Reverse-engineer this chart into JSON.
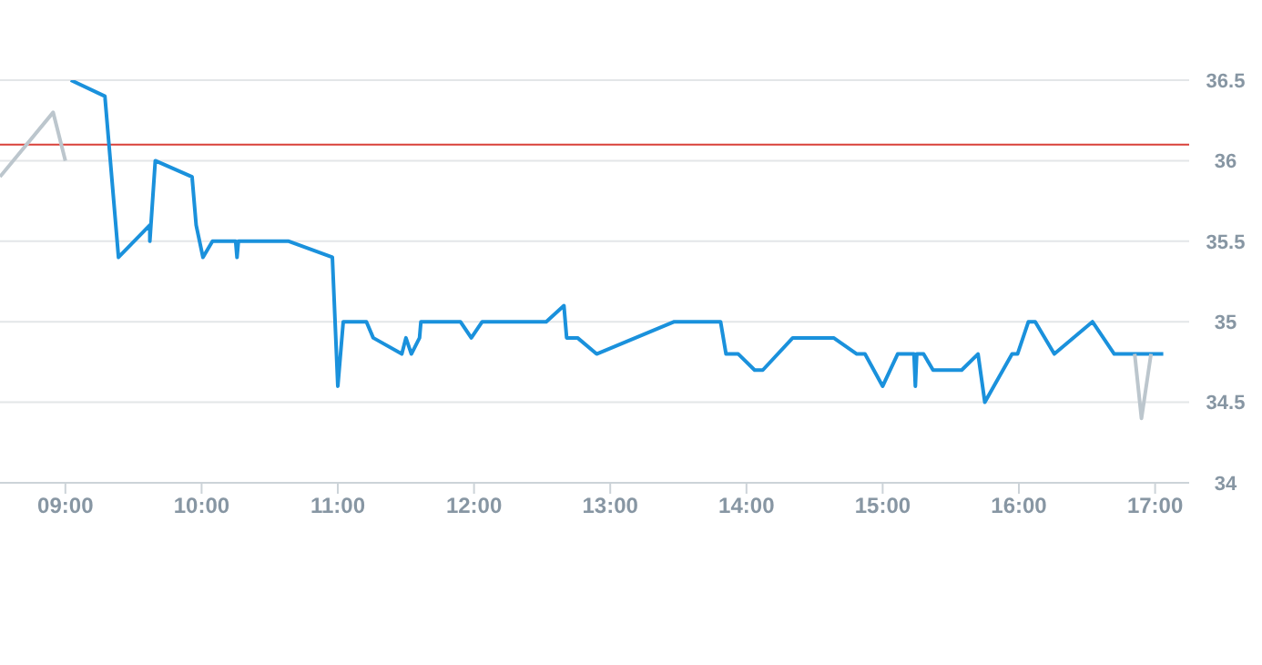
{
  "chart_data": {
    "type": "line",
    "xlim": [
      8.52,
      17.25
    ],
    "xticks": [
      {
        "value": 9,
        "label": "09:00"
      },
      {
        "value": 10,
        "label": "10:00"
      },
      {
        "value": 11,
        "label": "11:00"
      },
      {
        "value": 12,
        "label": "12:00"
      },
      {
        "value": 13,
        "label": "13:00"
      },
      {
        "value": 14,
        "label": "14:00"
      },
      {
        "value": 15,
        "label": "15:00"
      },
      {
        "value": 16,
        "label": "16:00"
      },
      {
        "value": 17,
        "label": "17:00"
      }
    ],
    "ylim": [
      34,
      36.5
    ],
    "yticks": [
      34,
      34.5,
      35,
      35.5,
      36,
      36.5
    ],
    "grid": "y",
    "marker": "none",
    "line_style": "solid",
    "ref_lines": [
      {
        "axis": "y",
        "value": 36.1,
        "color": "#d9413a"
      }
    ],
    "series": [
      {
        "color": "#bcc6cd",
        "x": [
          8.52,
          8.91,
          9.0
        ],
        "values": [
          35.9,
          36.3,
          36.0
        ]
      },
      {
        "color": "#1a91dc",
        "x": [
          9.04,
          9.29,
          9.39,
          9.62,
          9.62,
          9.66,
          9.93,
          9.96,
          10.01,
          10.08,
          10.25,
          10.26,
          10.27,
          10.64,
          10.96,
          11.0,
          11.04,
          11.21,
          11.26,
          11.47,
          11.5,
          11.54,
          11.6,
          11.61,
          11.9,
          11.98,
          12.06,
          12.53,
          12.66,
          12.68,
          12.76,
          12.9,
          13.47,
          13.81,
          13.85,
          13.94,
          14.06,
          14.12,
          14.34,
          14.64,
          14.81,
          14.87,
          15.0,
          15.11,
          15.23,
          15.24,
          15.25,
          15.3,
          15.37,
          15.58,
          15.7,
          15.75,
          15.95,
          15.99,
          16.07,
          16.12,
          16.26,
          16.54,
          16.7,
          17.06
        ],
        "values": [
          36.5,
          36.4,
          35.4,
          35.6,
          35.5,
          36.0,
          35.9,
          35.6,
          35.4,
          35.5,
          35.5,
          35.4,
          35.5,
          35.5,
          35.4,
          34.6,
          35.0,
          35.0,
          34.9,
          34.8,
          34.9,
          34.8,
          34.9,
          35.0,
          35.0,
          34.9,
          35.0,
          35.0,
          35.1,
          34.9,
          34.9,
          34.8,
          35.0,
          35.0,
          34.8,
          34.8,
          34.7,
          34.7,
          34.9,
          34.9,
          34.8,
          34.8,
          34.6,
          34.8,
          34.8,
          34.6,
          34.8,
          34.8,
          34.7,
          34.7,
          34.8,
          34.5,
          34.8,
          34.8,
          35.0,
          35.0,
          34.8,
          35.0,
          34.8,
          34.8
        ]
      },
      {
        "color": "#bcc6cd",
        "x": [
          16.85,
          16.9,
          16.97
        ],
        "values": [
          34.8,
          34.4,
          34.8
        ]
      }
    ]
  }
}
